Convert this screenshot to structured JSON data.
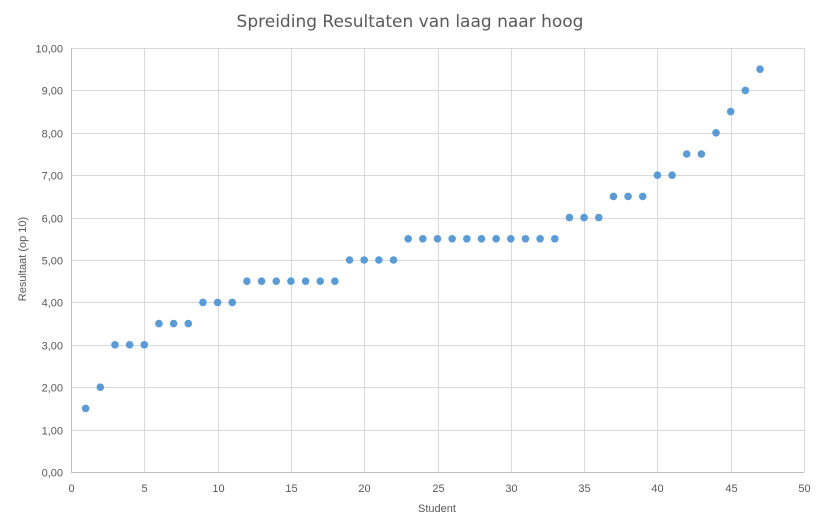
{
  "chart_data": {
    "type": "scatter",
    "title": "Spreiding Resultaten van laag naar hoog",
    "xlabel": "Student",
    "ylabel": "Resultaat (op 10)",
    "xlim": [
      0,
      50
    ],
    "ylim": [
      0,
      10
    ],
    "x_ticks": [
      0,
      5,
      10,
      15,
      20,
      25,
      30,
      35,
      40,
      45,
      50
    ],
    "x_tick_labels": [
      "0",
      "5",
      "10",
      "15",
      "20",
      "25",
      "30",
      "35",
      "40",
      "45",
      "50"
    ],
    "y_ticks": [
      0,
      1,
      2,
      3,
      4,
      5,
      6,
      7,
      8,
      9,
      10
    ],
    "y_tick_labels": [
      "0,00",
      "1,00",
      "2,00",
      "3,00",
      "4,00",
      "5,00",
      "6,00",
      "7,00",
      "8,00",
      "9,00",
      "10,00"
    ],
    "grid": true,
    "legend": "none",
    "marker_color": "#5b9bd5",
    "x": [
      1,
      2,
      3,
      4,
      5,
      6,
      7,
      8,
      9,
      10,
      11,
      12,
      13,
      14,
      15,
      16,
      17,
      18,
      19,
      20,
      21,
      22,
      23,
      24,
      25,
      26,
      27,
      28,
      29,
      30,
      31,
      32,
      33,
      34,
      35,
      36,
      37,
      38,
      39,
      40,
      41,
      42,
      43,
      44,
      45,
      46,
      47
    ],
    "y": [
      1.5,
      2.0,
      3.0,
      3.0,
      3.0,
      3.5,
      3.5,
      3.5,
      4.0,
      4.0,
      4.0,
      4.5,
      4.5,
      4.5,
      4.5,
      4.5,
      4.5,
      4.5,
      5.0,
      5.0,
      5.0,
      5.0,
      5.5,
      5.5,
      5.5,
      5.5,
      5.5,
      5.5,
      5.5,
      5.5,
      5.5,
      5.5,
      5.5,
      6.0,
      6.0,
      6.0,
      6.5,
      6.5,
      6.5,
      7.0,
      7.0,
      7.5,
      7.5,
      8.0,
      8.5,
      9.0,
      9.5
    ]
  }
}
